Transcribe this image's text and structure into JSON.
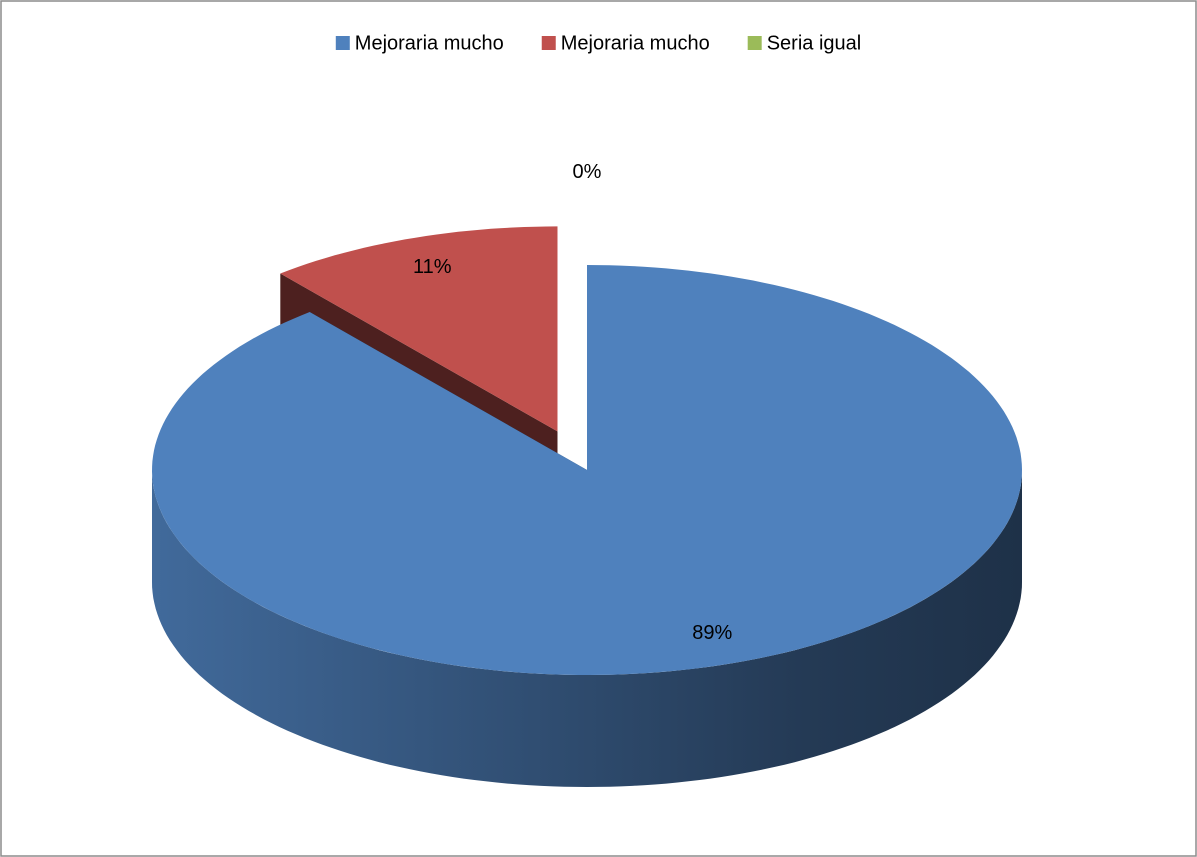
{
  "chart_data": {
    "type": "pie3d",
    "categories": [
      "Mejoraria mucho",
      "Mejoraria mucho",
      "Seria igual"
    ],
    "values": [
      89,
      11,
      0
    ],
    "value_labels": [
      "89%",
      "11%",
      "0%"
    ],
    "colors": [
      "#4f81bd",
      "#c0504d",
      "#9bbb59"
    ],
    "exploded": [
      false,
      true,
      false
    ],
    "legend": "top"
  }
}
